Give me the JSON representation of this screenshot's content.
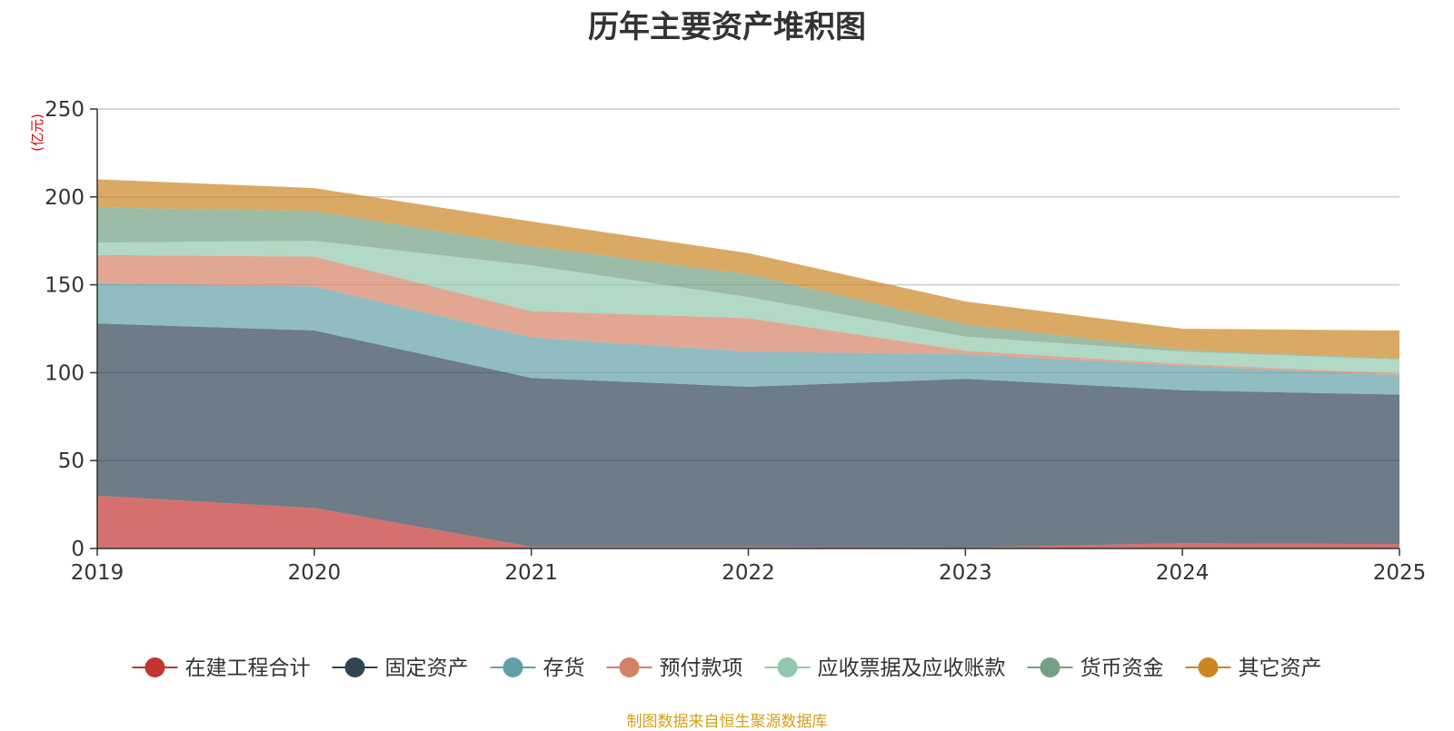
{
  "chart_data": {
    "type": "area",
    "stacked": true,
    "title": "历年主要资产堆积图",
    "unit": "(亿元)",
    "x": [
      "2019",
      "2020",
      "2021",
      "2022",
      "2023",
      "2024",
      "2025"
    ],
    "ylim": [
      0,
      250
    ],
    "yticks": [
      0,
      50,
      100,
      150,
      200,
      250
    ],
    "grid": true,
    "legend_position": "bottom",
    "series": [
      {
        "name": "在建工程合计",
        "color": "#c23531",
        "values": [
          30,
          23,
          1,
          1,
          0.5,
          3,
          2.5
        ]
      },
      {
        "name": "固定资产",
        "color": "#2f4554",
        "values": [
          98,
          101,
          96,
          91,
          96,
          87,
          85
        ]
      },
      {
        "name": "存货",
        "color": "#61a0a8",
        "values": [
          23,
          25,
          23,
          20,
          14,
          14,
          11
        ]
      },
      {
        "name": "预付款项",
        "color": "#d48265",
        "values": [
          16,
          17,
          15,
          19,
          2,
          1,
          1
        ]
      },
      {
        "name": "应收票据及应收账款",
        "color": "#91c7ae",
        "values": [
          7,
          9,
          26,
          12,
          8,
          7,
          8
        ]
      },
      {
        "name": "货币资金",
        "color": "#749f83",
        "values": [
          20,
          17,
          11,
          13,
          7,
          1,
          0.5
        ]
      },
      {
        "name": "其它资产",
        "color": "#ca8622",
        "values": [
          16,
          13,
          14,
          12,
          13,
          12,
          16
        ]
      }
    ],
    "source": "制图数据来自恒生聚源数据库"
  }
}
